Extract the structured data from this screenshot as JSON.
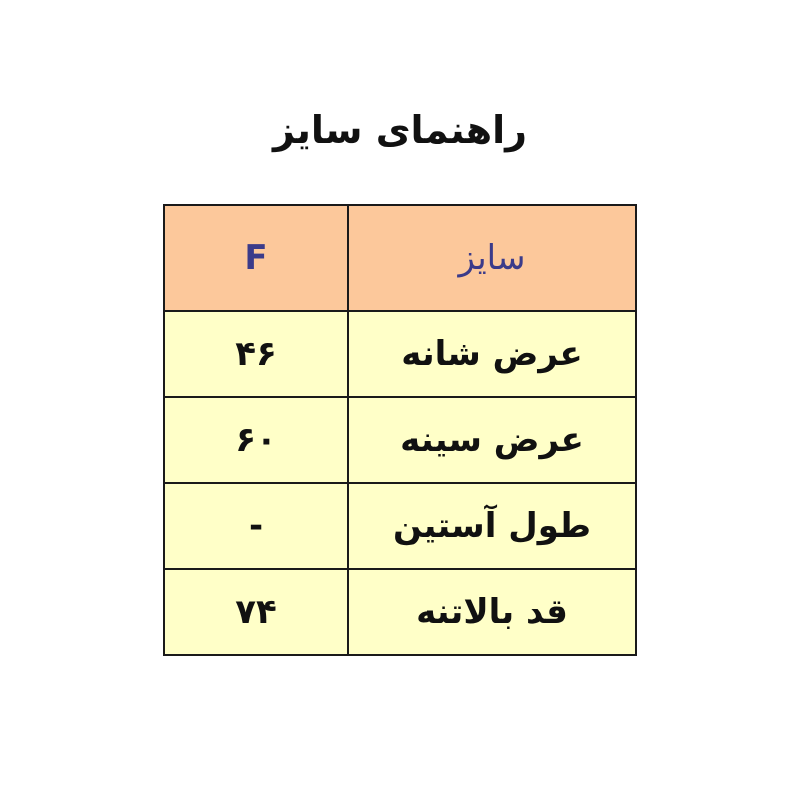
{
  "title": "راهنمای سایز",
  "colors": {
    "header_bg": "#fcc89b",
    "row_bg": "#ffffc8",
    "header_text": "#3b3b8a"
  },
  "table": {
    "header": {
      "label": "سایز",
      "value": "F"
    },
    "rows": [
      {
        "label": "عرض شانه",
        "value": "۴۶"
      },
      {
        "label": "عرض سینه",
        "value": "۶۰"
      },
      {
        "label": "طول آستین",
        "value": "-"
      },
      {
        "label": "قد بالاتنه",
        "value": "۷۴"
      }
    ]
  }
}
